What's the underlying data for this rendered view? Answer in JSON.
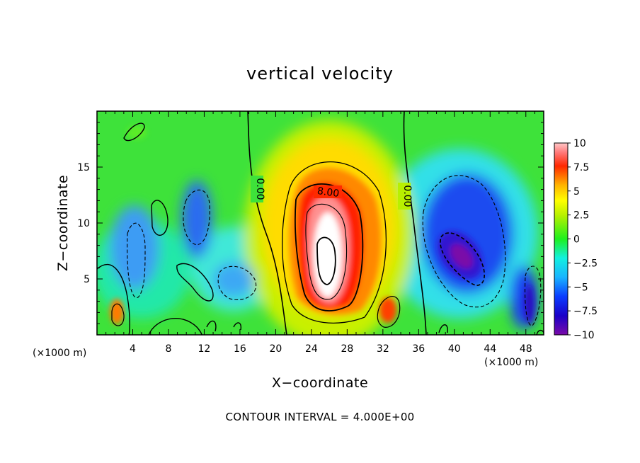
{
  "chart_data": {
    "type": "contour",
    "title": "vertical velocity",
    "xlabel": "X−coordinate",
    "ylabel": "Z−coordinate",
    "x_unit_left": "(×1000 m)",
    "x_unit_right": "(×1000 m)",
    "xlim": [
      0,
      50
    ],
    "ylim": [
      0,
      20
    ],
    "xticks": [
      "4",
      "8",
      "12",
      "16",
      "20",
      "24",
      "28",
      "32",
      "36",
      "40",
      "44",
      "48"
    ],
    "yticks": [
      "5",
      "10",
      "15"
    ],
    "colorbar": {
      "range": [
        -10,
        10
      ],
      "ticks": [
        "10",
        "7.5",
        "5",
        "2.5",
        "0",
        "−2.5",
        "−5",
        "−7.5",
        "−10"
      ]
    },
    "contour_labels": [
      "0.00",
      "8.00",
      "0.00"
    ],
    "footer": "CONTOUR INTERVAL = 4.000E+00"
  }
}
